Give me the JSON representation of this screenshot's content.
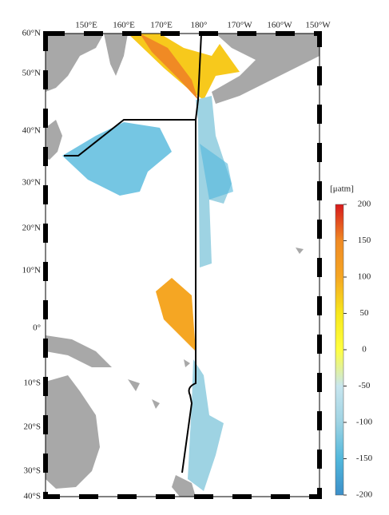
{
  "map": {
    "lon_labels": [
      "150°E",
      "160°E",
      "170°E",
      "180°",
      "170°W",
      "160°W",
      "150°W"
    ],
    "lat_labels": [
      "60°N",
      "50°N",
      "40°N",
      "30°N",
      "20°N",
      "10°N",
      "0°",
      "10°S",
      "20°S",
      "30°S",
      "40°S"
    ]
  },
  "colorbar": {
    "unit": "[μatm]",
    "range": [
      -200,
      200
    ],
    "ticks": [
      200,
      150,
      100,
      50,
      0,
      -50,
      -100,
      -150,
      -200
    ],
    "colors": [
      "#d7191c",
      "#f08a24",
      "#f5a623",
      "#f7e81c",
      "#ffff40",
      "#c8e6ef",
      "#9ed3e3",
      "#52b8dc",
      "#3c8fc9"
    ]
  }
}
